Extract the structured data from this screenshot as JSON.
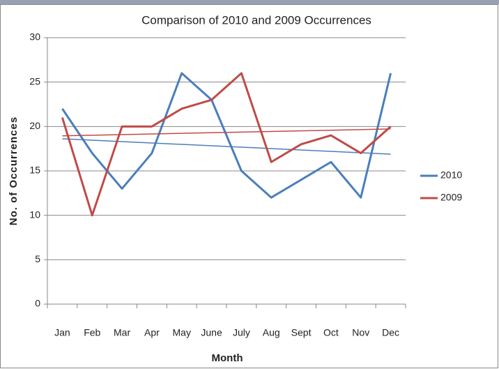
{
  "chart_data": {
    "type": "line",
    "title": "Comparison of 2010 and 2009 Occurrences",
    "x_label": "Month",
    "y_label": "No. of Occurrences",
    "categories": [
      "Jan",
      "Feb",
      "Mar",
      "Apr",
      "May",
      "June",
      "July",
      "Aug",
      "Sept",
      "Oct",
      "Nov",
      "Dec"
    ],
    "series": [
      {
        "name": "2010",
        "color": "#4a7ebb",
        "values": [
          22,
          17,
          13,
          17,
          26,
          23,
          15,
          12,
          14,
          16,
          12,
          26
        ]
      },
      {
        "name": "2009",
        "color": "#be4b48",
        "values": [
          21,
          10,
          20,
          20,
          22,
          23,
          26,
          16,
          18,
          19,
          17,
          20
        ]
      }
    ],
    "ylim": [
      0,
      30
    ],
    "yticks": [
      0,
      5,
      10,
      15,
      20,
      25,
      30
    ],
    "grid": true,
    "trendline": "linear",
    "legend": "right"
  }
}
